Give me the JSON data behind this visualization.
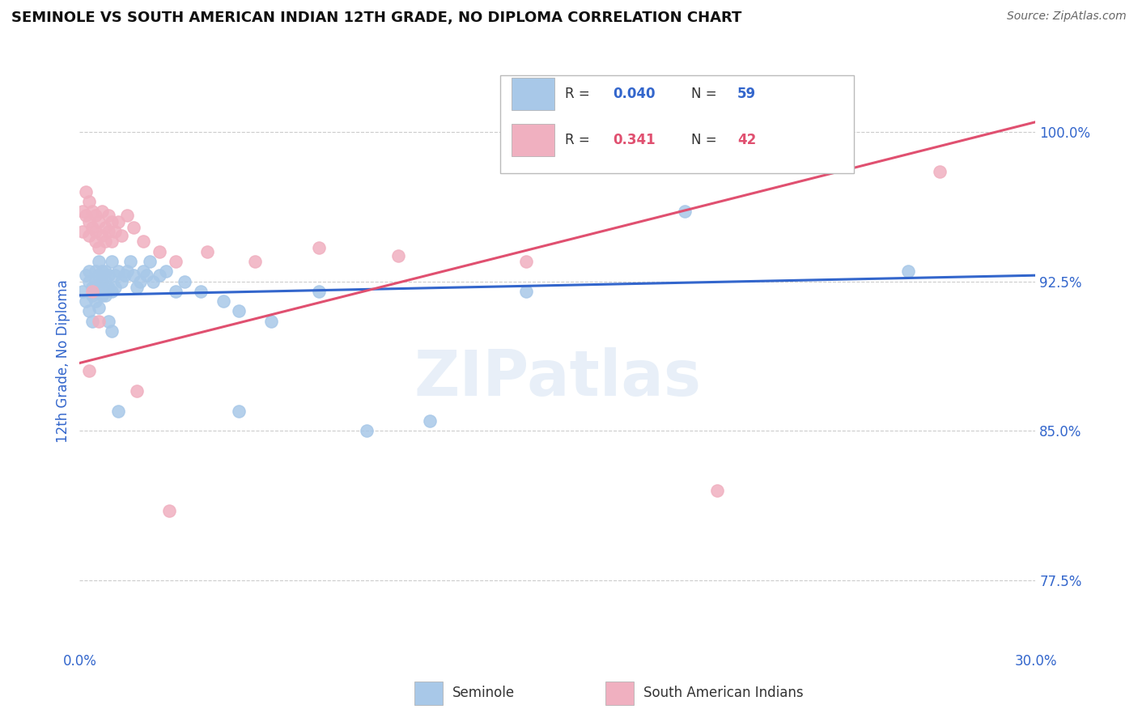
{
  "title": "SEMINOLE VS SOUTH AMERICAN INDIAN 12TH GRADE, NO DIPLOMA CORRELATION CHART",
  "source": "Source: ZipAtlas.com",
  "xlabel_blue": "Seminole",
  "xlabel_pink": "South American Indians",
  "ylabel": "12th Grade, No Diploma",
  "xlim": [
    0.0,
    0.3
  ],
  "ylim": [
    0.74,
    1.03
  ],
  "yticks": [
    0.775,
    0.85,
    0.925,
    1.0
  ],
  "ytick_labels": [
    "77.5%",
    "85.0%",
    "92.5%",
    "100.0%"
  ],
  "legend_r_blue": "0.040",
  "legend_n_blue": "59",
  "legend_r_pink": "0.341",
  "legend_n_pink": "42",
  "blue_color": "#a8c8e8",
  "pink_color": "#f0b0c0",
  "blue_line_color": "#3366cc",
  "pink_line_color": "#e05070",
  "blue_regression": [
    0.0,
    0.918,
    0.3,
    0.928
  ],
  "pink_regression": [
    0.0,
    0.884,
    0.3,
    1.005
  ],
  "blue_scatter_x": [
    0.001,
    0.002,
    0.002,
    0.003,
    0.003,
    0.004,
    0.004,
    0.005,
    0.005,
    0.005,
    0.006,
    0.006,
    0.006,
    0.007,
    0.007,
    0.007,
    0.008,
    0.008,
    0.009,
    0.009,
    0.01,
    0.01,
    0.011,
    0.011,
    0.012,
    0.013,
    0.014,
    0.015,
    0.016,
    0.017,
    0.018,
    0.019,
    0.02,
    0.021,
    0.022,
    0.023,
    0.025,
    0.027,
    0.03,
    0.033,
    0.038,
    0.045,
    0.05,
    0.06,
    0.075,
    0.09,
    0.11,
    0.14,
    0.19,
    0.26,
    0.003,
    0.004,
    0.005,
    0.006,
    0.008,
    0.009,
    0.01,
    0.012,
    0.05
  ],
  "blue_scatter_y": [
    0.92,
    0.928,
    0.915,
    0.93,
    0.925,
    0.922,
    0.918,
    0.93,
    0.925,
    0.92,
    0.935,
    0.928,
    0.922,
    0.93,
    0.925,
    0.918,
    0.93,
    0.925,
    0.928,
    0.922,
    0.935,
    0.92,
    0.928,
    0.922,
    0.93,
    0.925,
    0.928,
    0.93,
    0.935,
    0.928,
    0.922,
    0.925,
    0.93,
    0.928,
    0.935,
    0.925,
    0.928,
    0.93,
    0.92,
    0.925,
    0.92,
    0.915,
    0.91,
    0.905,
    0.92,
    0.85,
    0.855,
    0.92,
    0.96,
    0.93,
    0.91,
    0.905,
    0.915,
    0.912,
    0.918,
    0.905,
    0.9,
    0.86,
    0.86
  ],
  "pink_scatter_x": [
    0.001,
    0.001,
    0.002,
    0.002,
    0.003,
    0.003,
    0.003,
    0.004,
    0.004,
    0.005,
    0.005,
    0.005,
    0.006,
    0.006,
    0.007,
    0.007,
    0.008,
    0.008,
    0.009,
    0.009,
    0.01,
    0.01,
    0.011,
    0.012,
    0.013,
    0.015,
    0.017,
    0.02,
    0.025,
    0.03,
    0.04,
    0.055,
    0.075,
    0.1,
    0.14,
    0.2,
    0.27,
    0.003,
    0.004,
    0.006,
    0.018,
    0.028
  ],
  "pink_scatter_y": [
    0.96,
    0.95,
    0.97,
    0.958,
    0.965,
    0.955,
    0.948,
    0.96,
    0.952,
    0.945,
    0.958,
    0.95,
    0.942,
    0.955,
    0.96,
    0.948,
    0.952,
    0.945,
    0.958,
    0.95,
    0.955,
    0.945,
    0.95,
    0.955,
    0.948,
    0.958,
    0.952,
    0.945,
    0.94,
    0.935,
    0.94,
    0.935,
    0.942,
    0.938,
    0.935,
    0.82,
    0.98,
    0.88,
    0.92,
    0.905,
    0.87,
    0.81
  ]
}
